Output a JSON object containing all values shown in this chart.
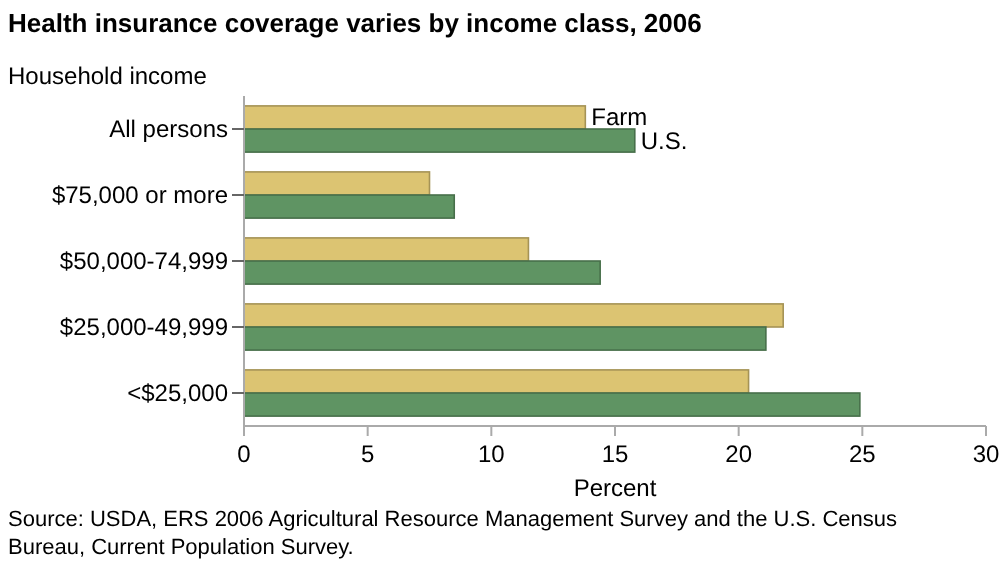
{
  "chart_data": {
    "type": "bar",
    "orientation": "horizontal",
    "title": "Health insurance coverage varies by income class, 2006",
    "ylabel": "Household income",
    "xlabel": "Percent",
    "categories": [
      "All persons",
      "$75,000 or more",
      "$50,000-74,999",
      "$25,000-49,999",
      "<$25,000"
    ],
    "series": [
      {
        "name": "Farm",
        "color": "#dcc472",
        "values": [
          13.8,
          7.5,
          11.5,
          21.8,
          20.4
        ]
      },
      {
        "name": "U.S.",
        "color": "#5f9463",
        "values": [
          15.8,
          8.5,
          14.4,
          21.1,
          24.9
        ]
      }
    ],
    "xlim": [
      0,
      30
    ],
    "xticks": [
      0,
      5,
      10,
      15,
      20,
      25,
      30
    ],
    "grid": false,
    "legend": false,
    "annotations": [
      "Source: USDA, ERS 2006 Agricultural Resource Management Survey and the U.S. Census Bureau, Current Population Survey."
    ]
  }
}
